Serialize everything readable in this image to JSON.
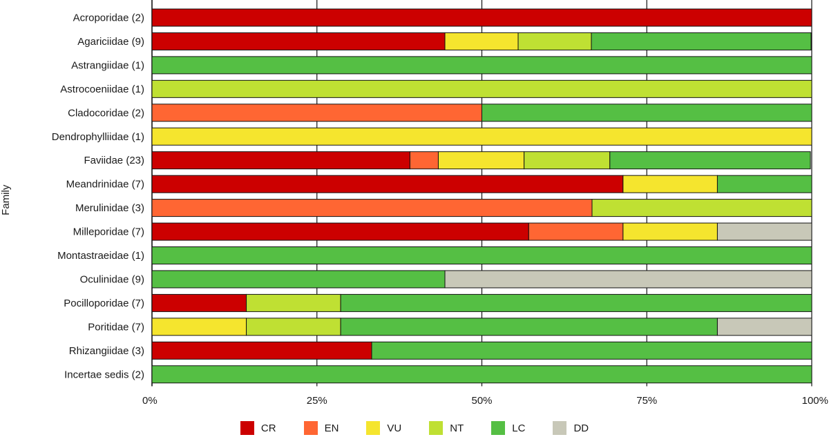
{
  "chart_data": {
    "type": "bar",
    "orientation": "horizontal",
    "stacked": true,
    "ylabel": "Family",
    "xlabel": "",
    "xlim": [
      0,
      100
    ],
    "x_ticks": [
      "0%",
      "25%",
      "50%",
      "75%",
      "100%"
    ],
    "grid": "vertical",
    "legend_position": "bottom",
    "categories": [
      "Acroporidae (2)",
      "Agariciidae (9)",
      "Astrangiidae (1)",
      "Astrocoeniidae (1)",
      "Cladocoridae (2)",
      "Dendrophylliidae (1)",
      "Faviidae (23)",
      "Meandrinidae (7)",
      "Merulinidae (3)",
      "Milleporidae (7)",
      "Montastraeidae (1)",
      "Oculinidae (9)",
      "Pocilloporidae (7)",
      "Poritidae (7)",
      "Rhizangiidae (3)",
      "Incertae sedis (2)"
    ],
    "series": [
      {
        "name": "CR",
        "color": "#cc0000",
        "values": [
          100,
          44.4,
          0,
          0,
          0,
          0,
          39.1,
          71.4,
          0,
          57.1,
          0,
          0,
          14.3,
          0,
          33.3,
          0
        ]
      },
      {
        "name": "EN",
        "color": "#ff6633",
        "values": [
          0,
          0,
          0,
          0,
          50,
          0,
          4.3,
          0,
          66.7,
          14.3,
          0,
          0,
          0,
          0,
          0,
          0
        ]
      },
      {
        "name": "VU",
        "color": "#f5e52e",
        "values": [
          0,
          11.1,
          0,
          0,
          0,
          100,
          13.0,
          14.3,
          0,
          14.3,
          0,
          0,
          0,
          14.3,
          0,
          0
        ]
      },
      {
        "name": "NT",
        "color": "#bfe033",
        "values": [
          0,
          11.1,
          0,
          100,
          0,
          0,
          13.0,
          0,
          33.3,
          0,
          0,
          0,
          14.3,
          14.3,
          0,
          0
        ]
      },
      {
        "name": "LC",
        "color": "#55bf44",
        "values": [
          0,
          33.3,
          100,
          0,
          50,
          0,
          30.4,
          14.3,
          0,
          0,
          100,
          44.4,
          71.4,
          57.1,
          66.7,
          100
        ]
      },
      {
        "name": "DD",
        "color": "#c8c8b8",
        "values": [
          0,
          0,
          0,
          0,
          0,
          0,
          0,
          0,
          0,
          14.3,
          0,
          55.6,
          0,
          14.3,
          0,
          0
        ]
      }
    ]
  }
}
